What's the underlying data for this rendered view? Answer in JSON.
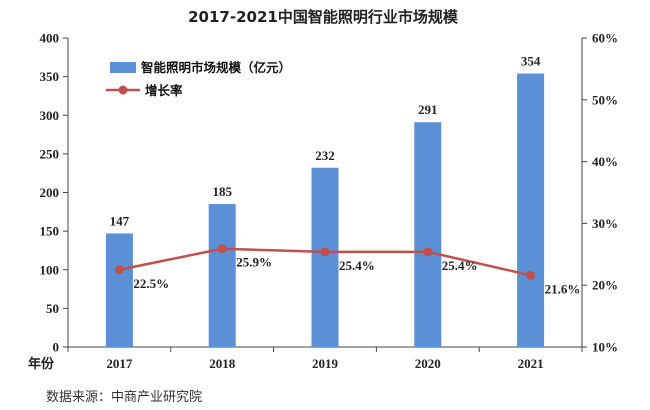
{
  "chart_data": {
    "type": "bar",
    "title": "2017-2021中国智能照明行业市场规模",
    "x_axis_heading": "年份",
    "categories": [
      "2017",
      "2018",
      "2019",
      "2020",
      "2021"
    ],
    "series": [
      {
        "name": "智能照明市场规模（亿元）",
        "type": "bar",
        "axis": "left",
        "values": [
          147,
          185,
          232,
          291,
          354
        ],
        "labels": [
          "147",
          "185",
          "232",
          "291",
          "354"
        ]
      },
      {
        "name": "增长率",
        "type": "line",
        "axis": "right",
        "values": [
          22.5,
          25.9,
          25.4,
          25.4,
          21.6
        ],
        "labels": [
          "22.5%",
          "25.9%",
          "25.4%",
          "25.4%",
          "21.6%"
        ]
      }
    ],
    "left_axis": {
      "range": [
        0,
        400
      ],
      "ticks": [
        "0",
        "50",
        "100",
        "150",
        "200",
        "250",
        "300",
        "350",
        "400"
      ]
    },
    "right_axis": {
      "range": [
        10,
        60
      ],
      "ticks": [
        "10%",
        "20%",
        "30%",
        "40%",
        "50%",
        "60%"
      ]
    },
    "legend": "top-left",
    "grid": false,
    "colors": {
      "bar": "#5B8FD6",
      "line": "#C0504D"
    }
  },
  "source": "数据来源：中商产业研究院"
}
